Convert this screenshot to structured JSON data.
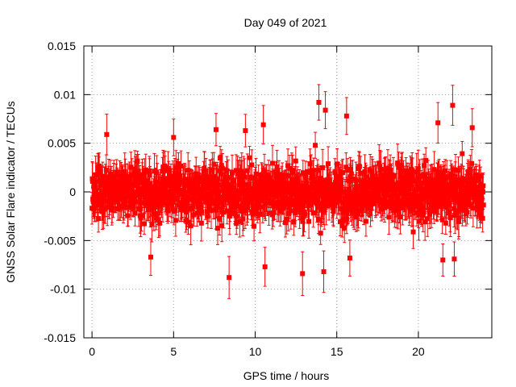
{
  "chart_data": {
    "type": "scatter",
    "title": "Day 049 of 2021",
    "xlabel": "GPS time / hours",
    "ylabel": "GNSS Solar Flare indicator / TECUs",
    "xlim": [
      -0.5,
      24.5
    ],
    "ylim": [
      -0.015,
      0.015
    ],
    "x_ticks": [
      0,
      5,
      10,
      15,
      20
    ],
    "x_tick_labels": [
      "0",
      "5",
      "10",
      "15",
      "20"
    ],
    "y_ticks": [
      -0.015,
      -0.01,
      -0.005,
      0,
      0.005,
      0.01,
      0.015
    ],
    "y_tick_labels": [
      "-0.015",
      "-0.01",
      "-0.005",
      "0",
      "0.005",
      "0.01",
      "0.015"
    ],
    "grid": true,
    "legend": "none",
    "marker": "square",
    "error_bars": true,
    "x_range_hours": [
      0,
      23.99
    ],
    "typical_y_spread": [
      -0.005,
      0.005
    ],
    "typical_error": 0.0015,
    "series": [
      {
        "color": "#ff0000",
        "outliers": [
          {
            "x": 0.9,
            "y": 0.0059
          },
          {
            "x": 3.6,
            "y": -0.0067
          },
          {
            "x": 5.0,
            "y": 0.0056
          },
          {
            "x": 7.6,
            "y": 0.0064
          },
          {
            "x": 8.4,
            "y": -0.0088
          },
          {
            "x": 9.4,
            "y": 0.0063
          },
          {
            "x": 10.5,
            "y": 0.0069
          },
          {
            "x": 10.6,
            "y": -0.0077
          },
          {
            "x": 12.9,
            "y": -0.0084
          },
          {
            "x": 13.9,
            "y": 0.0092
          },
          {
            "x": 14.3,
            "y": 0.0084
          },
          {
            "x": 14.2,
            "y": -0.0082
          },
          {
            "x": 15.6,
            "y": 0.0078
          },
          {
            "x": 15.8,
            "y": -0.0068
          },
          {
            "x": 21.2,
            "y": 0.0071
          },
          {
            "x": 21.5,
            "y": -0.007
          },
          {
            "x": 22.1,
            "y": 0.0089
          },
          {
            "x": 22.2,
            "y": -0.0069
          },
          {
            "x": 23.3,
            "y": 0.0066
          }
        ]
      }
    ]
  }
}
